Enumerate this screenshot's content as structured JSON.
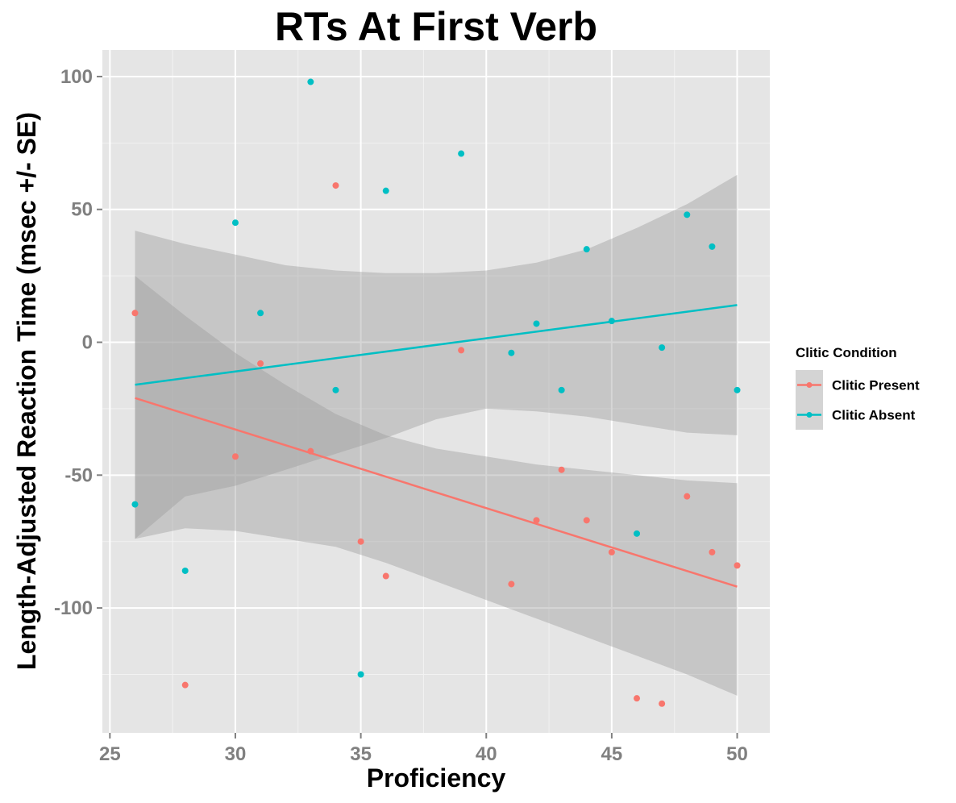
{
  "chart_data": {
    "type": "scatter",
    "title": "RTs At First Verb",
    "xlabel": "Proficiency",
    "ylabel": "Length-Adjusted Reaction Time (msec +/- SE)",
    "xlim": [
      24.7,
      51.3
    ],
    "ylim": [
      -147,
      110
    ],
    "x_ticks": [
      25,
      30,
      35,
      40,
      45,
      50
    ],
    "y_ticks": [
      -100,
      -50,
      0,
      50,
      100
    ],
    "grid": true,
    "legend": {
      "title": "Clitic Condition",
      "position": "right"
    },
    "series": [
      {
        "name": "Clitic Present",
        "color": "#f8766d",
        "points": [
          {
            "x": 26,
            "y": 11
          },
          {
            "x": 28,
            "y": -129
          },
          {
            "x": 30,
            "y": -43
          },
          {
            "x": 31,
            "y": -8
          },
          {
            "x": 33,
            "y": -41
          },
          {
            "x": 34,
            "y": 59
          },
          {
            "x": 35,
            "y": -75
          },
          {
            "x": 36,
            "y": -88
          },
          {
            "x": 39,
            "y": -3
          },
          {
            "x": 41,
            "y": -91
          },
          {
            "x": 42,
            "y": -67
          },
          {
            "x": 43,
            "y": -48
          },
          {
            "x": 44,
            "y": -67
          },
          {
            "x": 45,
            "y": -79
          },
          {
            "x": 46,
            "y": -134
          },
          {
            "x": 47,
            "y": -136
          },
          {
            "x": 48,
            "y": -58
          },
          {
            "x": 49,
            "y": -79
          },
          {
            "x": 50,
            "y": -84
          }
        ],
        "fit": {
          "x": [
            26,
            50
          ],
          "y": [
            -21,
            -92
          ]
        },
        "confidence_band": {
          "x": [
            26,
            28,
            30,
            32,
            34,
            36,
            38,
            40,
            42,
            44,
            46,
            48,
            50
          ],
          "upper": [
            25,
            10,
            -4,
            -16,
            -27,
            -35,
            -40,
            -43,
            -46,
            -48,
            -50,
            -52,
            -53
          ],
          "lower": [
            -74,
            -70,
            -71,
            -74,
            -77,
            -83,
            -90,
            -97,
            -104,
            -111,
            -118,
            -125,
            -133
          ]
        }
      },
      {
        "name": "Clitic Absent",
        "color": "#00bfc4",
        "points": [
          {
            "x": 26,
            "y": -61
          },
          {
            "x": 28,
            "y": -86
          },
          {
            "x": 30,
            "y": 45
          },
          {
            "x": 31,
            "y": 11
          },
          {
            "x": 33,
            "y": 98
          },
          {
            "x": 34,
            "y": -18
          },
          {
            "x": 35,
            "y": -125
          },
          {
            "x": 36,
            "y": 57
          },
          {
            "x": 39,
            "y": 71
          },
          {
            "x": 41,
            "y": -4
          },
          {
            "x": 42,
            "y": 7
          },
          {
            "x": 43,
            "y": -18
          },
          {
            "x": 44,
            "y": 35
          },
          {
            "x": 45,
            "y": 8
          },
          {
            "x": 46,
            "y": -72
          },
          {
            "x": 47,
            "y": -2
          },
          {
            "x": 48,
            "y": 48
          },
          {
            "x": 49,
            "y": 36
          },
          {
            "x": 50,
            "y": -18
          }
        ],
        "fit": {
          "x": [
            26,
            50
          ],
          "y": [
            -16,
            14
          ]
        },
        "confidence_band": {
          "x": [
            26,
            28,
            30,
            32,
            34,
            36,
            38,
            40,
            42,
            44,
            46,
            48,
            50
          ],
          "upper": [
            42,
            37,
            33,
            29,
            27,
            26,
            26,
            27,
            30,
            35,
            43,
            52,
            63
          ],
          "lower": [
            -74,
            -58,
            -54,
            -48,
            -42,
            -36,
            -29,
            -25,
            -26,
            -28,
            -31,
            -34,
            -35
          ]
        }
      }
    ]
  }
}
